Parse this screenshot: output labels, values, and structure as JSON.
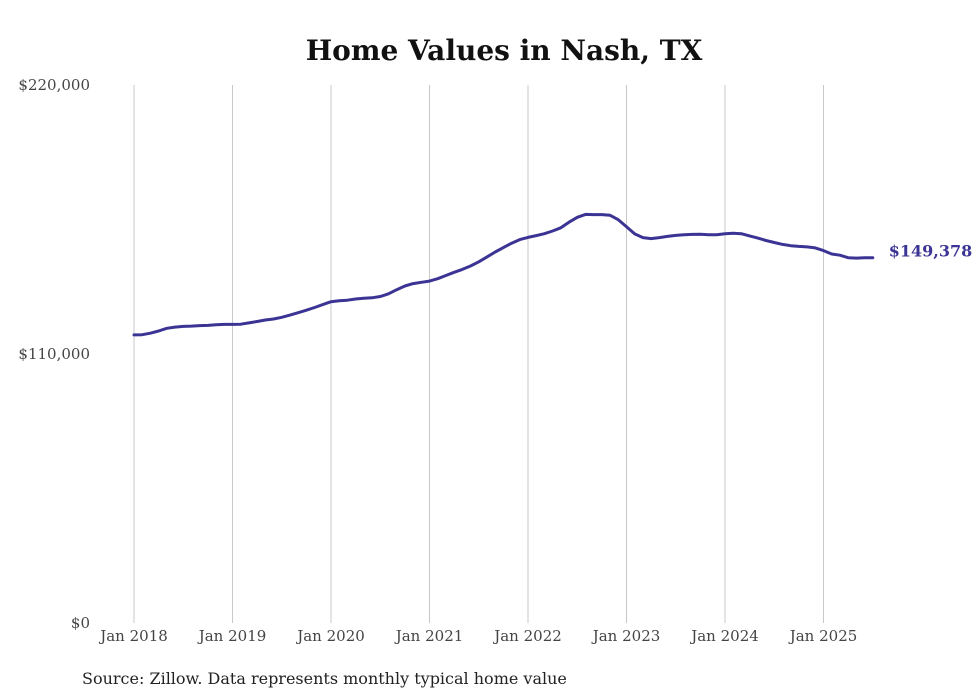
{
  "chart_data": {
    "type": "line",
    "title": "Home Values in Nash, TX",
    "xlabel": "",
    "ylabel": "",
    "ylim": [
      0,
      220000
    ],
    "y_ticks": [
      "$0",
      "$110,000",
      "$220,000"
    ],
    "y_tick_values": [
      0,
      110000,
      220000
    ],
    "x_ticks": [
      "Jan 2018",
      "Jan 2019",
      "Jan 2020",
      "Jan 2021",
      "Jan 2022",
      "Jan 2023",
      "Jan 2024",
      "Jan 2025"
    ],
    "grid": "vertical",
    "line_color": "#3b3494",
    "end_label": "$149,378",
    "source": "Source: Zillow. Data represents monthly typical home value",
    "series": [
      {
        "x": [
          "2018-01",
          "2018-02",
          "2018-03",
          "2018-04",
          "2018-05",
          "2018-06",
          "2018-07",
          "2018-08",
          "2018-09",
          "2018-10",
          "2018-11",
          "2018-12",
          "2019-01",
          "2019-02",
          "2019-03",
          "2019-04",
          "2019-05",
          "2019-06",
          "2019-07",
          "2019-08",
          "2019-09",
          "2019-10",
          "2019-11",
          "2019-12",
          "2020-01",
          "2020-02",
          "2020-03",
          "2020-04",
          "2020-05",
          "2020-06",
          "2020-07",
          "2020-08",
          "2020-09",
          "2020-10",
          "2020-11",
          "2020-12",
          "2021-01",
          "2021-02",
          "2021-03",
          "2021-04",
          "2021-05",
          "2021-06",
          "2021-07",
          "2021-08",
          "2021-09",
          "2021-10",
          "2021-11",
          "2021-12",
          "2022-01",
          "2022-02",
          "2022-03",
          "2022-04",
          "2022-05",
          "2022-06",
          "2022-07",
          "2022-08",
          "2022-09",
          "2022-10",
          "2022-11",
          "2022-12",
          "2023-01",
          "2023-02",
          "2023-03",
          "2023-04",
          "2023-05",
          "2023-06",
          "2023-07",
          "2023-08",
          "2023-09",
          "2023-10",
          "2023-11",
          "2023-12",
          "2024-01",
          "2024-02",
          "2024-03",
          "2024-04",
          "2024-05",
          "2024-06",
          "2024-07",
          "2024-08",
          "2024-09",
          "2024-10",
          "2024-11",
          "2024-12",
          "2025-01",
          "2025-02",
          "2025-03",
          "2025-04",
          "2025-05",
          "2025-06",
          "2025-07"
        ],
        "values": [
          117800,
          117900,
          118500,
          119400,
          120500,
          121000,
          121300,
          121400,
          121600,
          121700,
          122000,
          122100,
          122100,
          122200,
          122700,
          123300,
          123900,
          124300,
          125000,
          125900,
          126900,
          127900,
          129000,
          130200,
          131400,
          131800,
          132000,
          132500,
          132800,
          133000,
          133500,
          134600,
          136300,
          137800,
          138800,
          139300,
          139800,
          140800,
          142100,
          143400,
          144600,
          146000,
          147700,
          149700,
          151700,
          153500,
          155300,
          156800,
          157700,
          158400,
          159200,
          160300,
          161600,
          163900,
          165900,
          167100,
          167000,
          167000,
          166700,
          164900,
          162000,
          159100,
          157600,
          157200,
          157600,
          158100,
          158500,
          158800,
          158900,
          159000,
          158800,
          158800,
          159200,
          159400,
          159200,
          158300,
          157400,
          156400,
          155600,
          154800,
          154300,
          154000,
          153800,
          153400,
          152300,
          150900,
          150400,
          149378,
          149200,
          149378,
          149378
        ]
      }
    ]
  }
}
